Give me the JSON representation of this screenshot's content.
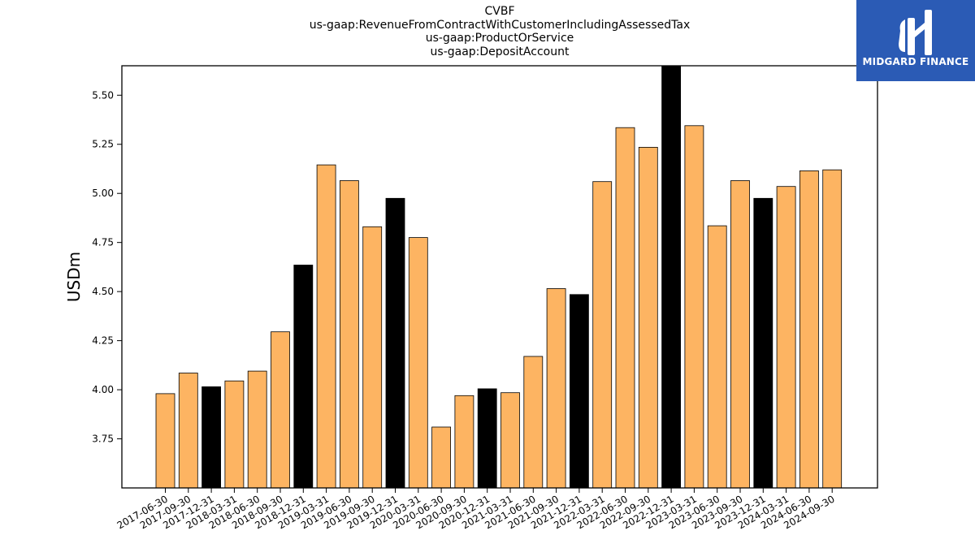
{
  "chart_data": {
    "type": "bar",
    "title_lines": [
      "CVBF",
      "us-gaap:RevenueFromContractWithCustomerIncludingAssessedTax",
      "us-gaap:ProductOrService",
      "us-gaap:DepositAccount"
    ],
    "ylabel": "USDm",
    "xlabel": "",
    "ylim": [
      3.5,
      5.65
    ],
    "yticks": [
      "3.75",
      "4.00",
      "4.25",
      "4.50",
      "4.75",
      "5.00",
      "5.25",
      "5.50"
    ],
    "categories": [
      "2017-06-30",
      "2017-09-30",
      "2017-12-31",
      "2018-03-31",
      "2018-06-30",
      "2018-09-30",
      "2018-12-31",
      "2019-03-31",
      "2019-06-30",
      "2019-09-30",
      "2019-12-31",
      "2020-03-31",
      "2020-06-30",
      "2020-09-30",
      "2020-12-31",
      "2021-03-31",
      "2021-06-30",
      "2021-09-30",
      "2021-12-31",
      "2022-03-31",
      "2022-06-30",
      "2022-09-30",
      "2022-12-31",
      "2023-03-31",
      "2023-06-30",
      "2023-09-30",
      "2023-12-31",
      "2024-03-31",
      "2024-06-30",
      "2024-09-30"
    ],
    "values": [
      3.98,
      4.085,
      4.015,
      4.045,
      4.095,
      4.295,
      4.635,
      5.145,
      5.065,
      4.83,
      4.975,
      4.775,
      3.81,
      3.97,
      4.005,
      3.985,
      4.17,
      4.515,
      4.485,
      5.06,
      5.335,
      5.235,
      5.67,
      5.345,
      4.835,
      5.065,
      4.975,
      5.035,
      5.115,
      5.12
    ],
    "highlight": [
      false,
      false,
      true,
      false,
      false,
      false,
      true,
      false,
      false,
      false,
      true,
      false,
      false,
      false,
      true,
      false,
      false,
      false,
      true,
      false,
      false,
      false,
      true,
      false,
      false,
      false,
      true,
      false,
      false,
      false
    ],
    "colors": {
      "bar": "#fdb462",
      "highlight": "#000000",
      "edge": "#000000"
    },
    "grid": false,
    "legend": "none"
  },
  "logo": {
    "text": "MIDGARD FINANCE",
    "background": "#2b5bb5"
  }
}
